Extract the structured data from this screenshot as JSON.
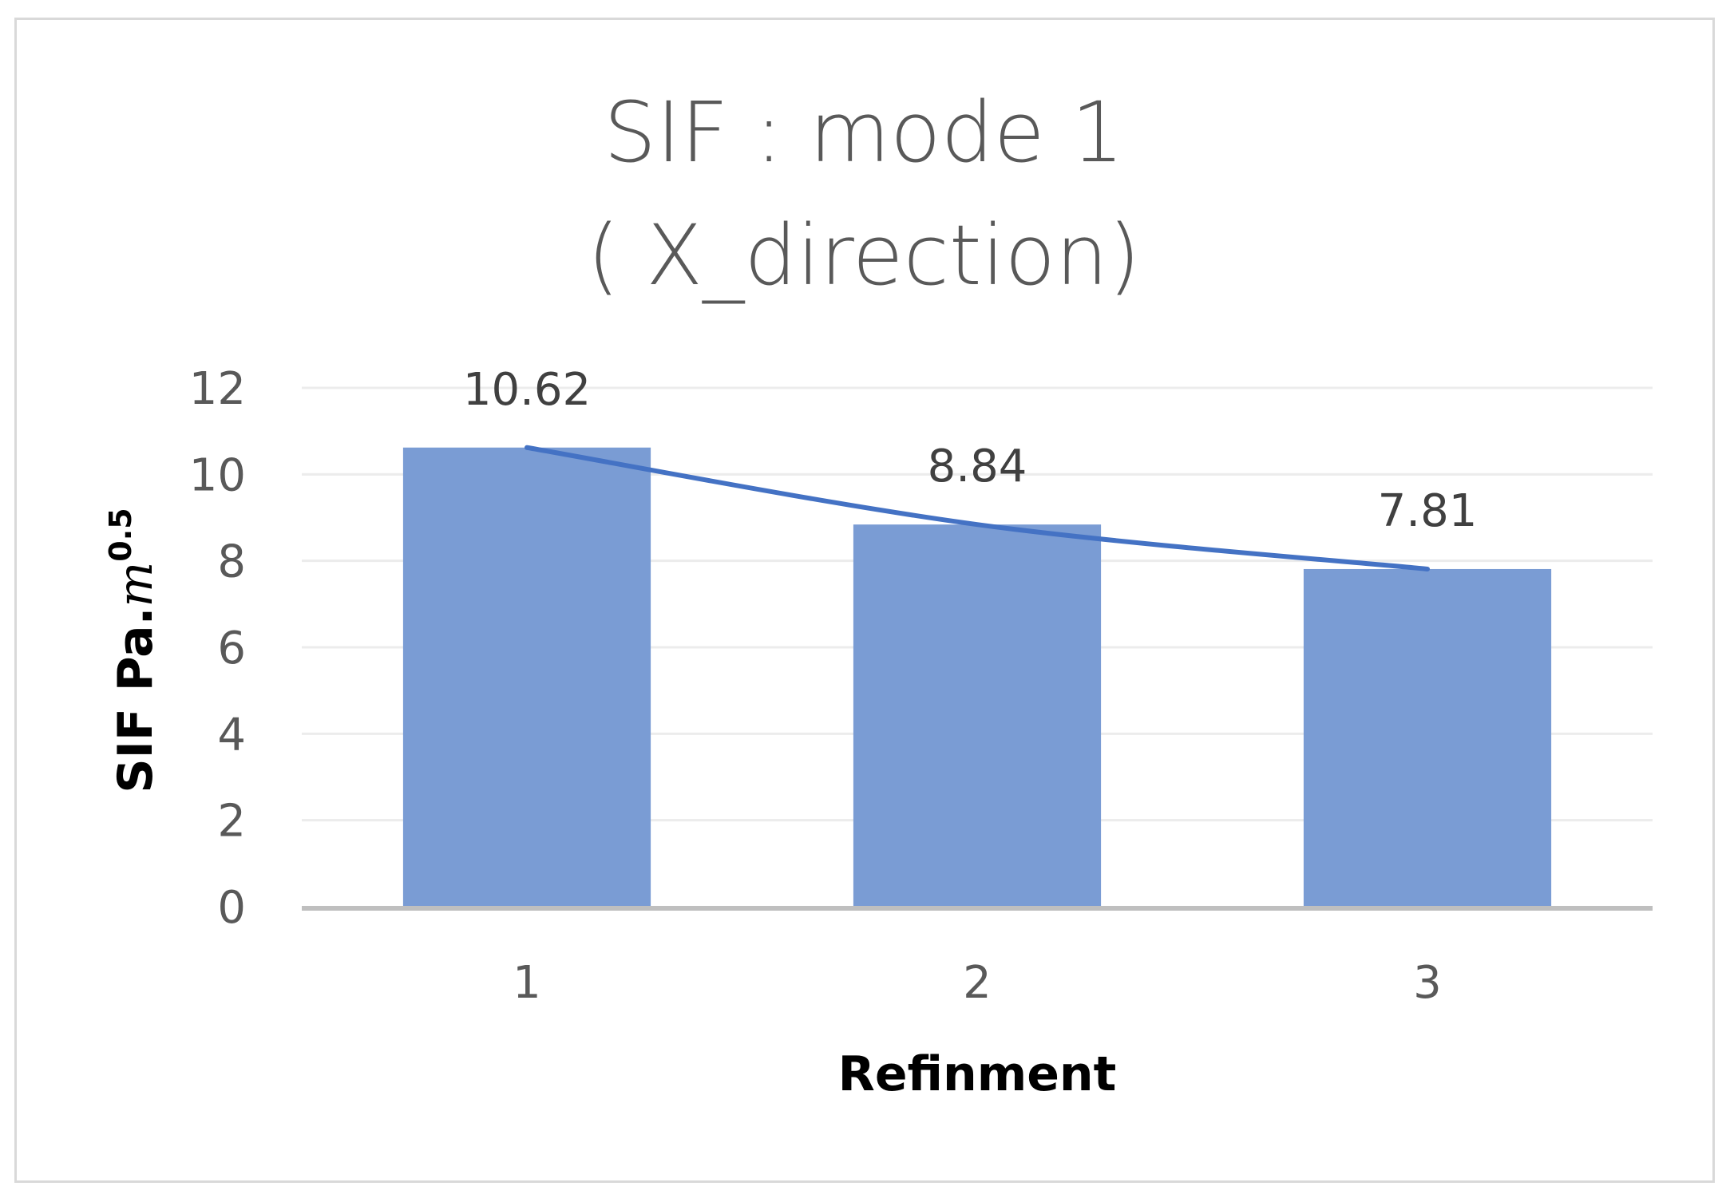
{
  "chart_data": {
    "type": "bar",
    "title_lines": [
      "SIF : mode 1",
      "( X_direction)"
    ],
    "xlabel": "Refinment",
    "ylabel_main": "SIF Pa.",
    "ylabel_unit": "m",
    "ylabel_exponent": "0.5",
    "categories": [
      "1",
      "2",
      "3"
    ],
    "series": [
      {
        "values": [
          10.62,
          8.84,
          7.81
        ],
        "data_labels": [
          "10.62",
          "8.84",
          "7.81"
        ]
      }
    ],
    "trendline": {
      "type": "smooth",
      "values": [
        10.62,
        8.84,
        7.81
      ]
    },
    "ylim": [
      0,
      12
    ],
    "yticks": [
      0,
      2,
      4,
      6,
      8,
      10,
      12
    ],
    "grid": true,
    "legend": "none",
    "colors": {
      "bar": "#7a9cd4",
      "trendline": "#4472c4",
      "gridline": "#ececec",
      "axis_line": "#bfbfbf"
    }
  }
}
